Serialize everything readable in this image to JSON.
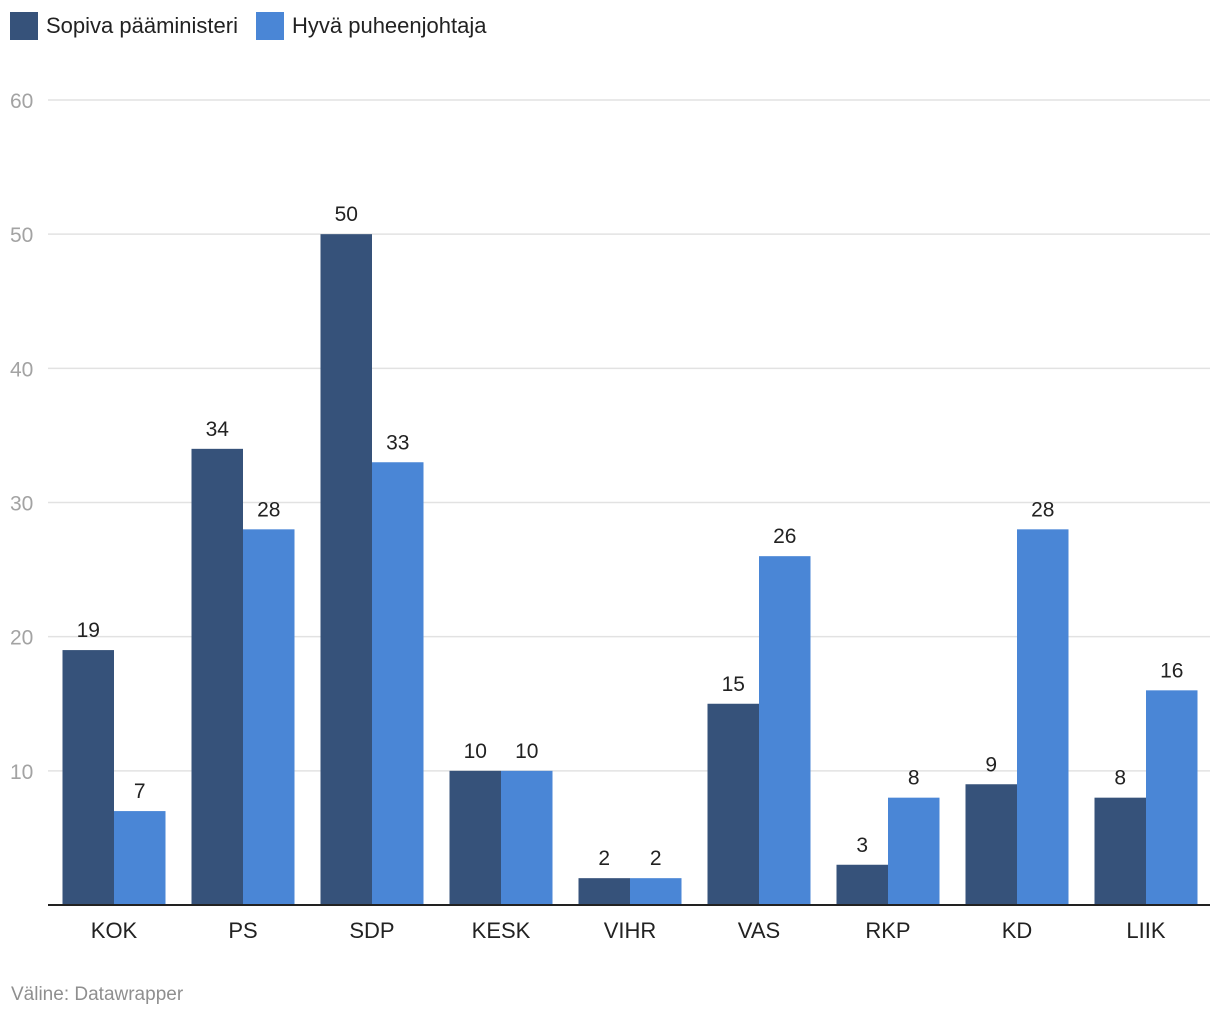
{
  "chart_data": {
    "type": "bar",
    "categories": [
      "KOK",
      "PS",
      "SDP",
      "KESK",
      "VIHR",
      "VAS",
      "RKP",
      "KD",
      "LIIK"
    ],
    "series": [
      {
        "name": "Sopiva pääministeri",
        "color": "#36527a",
        "values": [
          19,
          34,
          50,
          10,
          2,
          15,
          3,
          9,
          8
        ]
      },
      {
        "name": "Hyvä puheenjohtaja",
        "color": "#4a86d6",
        "values": [
          7,
          28,
          33,
          10,
          2,
          26,
          8,
          28,
          16
        ]
      }
    ],
    "ylim": [
      0,
      60
    ],
    "yticks": [
      10,
      20,
      30,
      40,
      50,
      60
    ],
    "grid": true,
    "legend": "top-left",
    "data_labels": true
  },
  "source": "Väline: Datawrapper"
}
